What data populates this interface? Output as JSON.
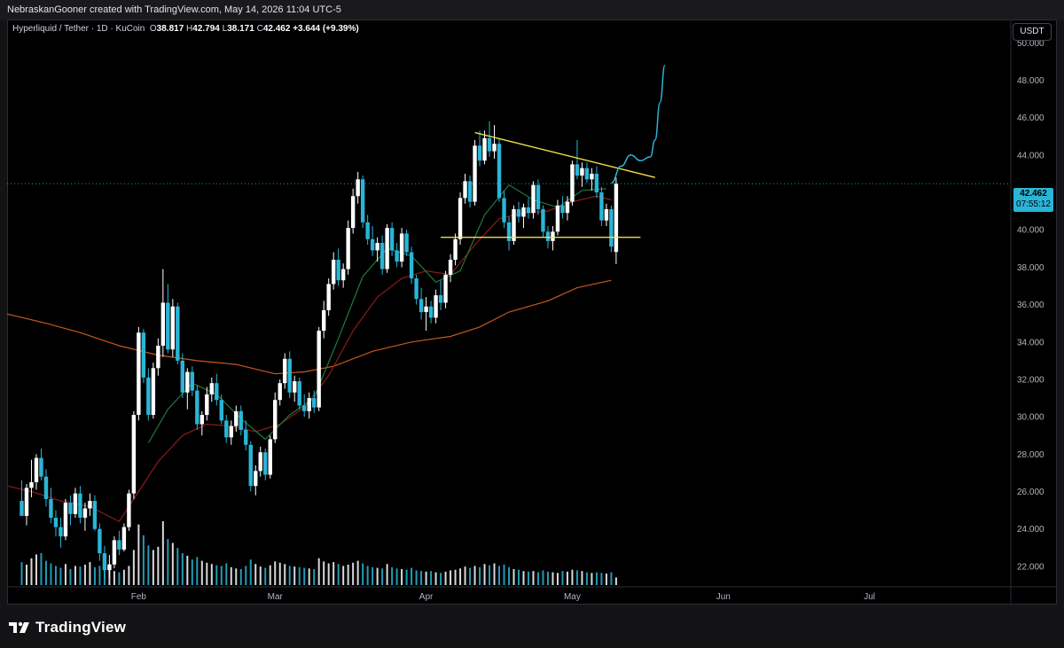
{
  "header": {
    "attribution": "NebraskanGooner created with TradingView.com, May 14, 2026 11:04 UTC-5"
  },
  "legend": {
    "symbol": "Hyperliquid / Tether · 1D · KuCoin",
    "o_label": "O",
    "o_value": "38.817",
    "h_label": "H",
    "h_value": "42.794",
    "l_label": "L",
    "l_value": "38.171",
    "c_label": "C",
    "c_value": "42.462",
    "change": "+3.644 (+9.39%)"
  },
  "currency_button": "USDT",
  "price_tag": {
    "price": "42.462",
    "countdown": "07:55:12"
  },
  "brand": {
    "name": "TradingView"
  },
  "colors": {
    "up_candle": "#ffffff",
    "down_candle": "#2ab5d6",
    "ma_green": "#1e7a3a",
    "ma_red": "#8b1a1a",
    "ma_orange": "#c8581a",
    "trendline": "#f0e050",
    "projection": "#2ab5d6",
    "volume_up": "#ffffff",
    "volume_down": "#2ab5d6"
  },
  "chart_data": {
    "type": "candlestick",
    "interval": "1D",
    "y_axis": {
      "ticks": [
        "22.000",
        "24.000",
        "26.000",
        "28.000",
        "30.000",
        "32.000",
        "34.000",
        "36.000",
        "38.000",
        "40.000",
        "42.000",
        "44.000",
        "46.000",
        "48.000",
        "50.000"
      ],
      "range": [
        21.0,
        51.2
      ],
      "side": "right"
    },
    "x_axis": {
      "ticks": [
        {
          "label": "Feb",
          "day": 24
        },
        {
          "label": "Mar",
          "day": 52
        },
        {
          "label": "Apr",
          "day": 83
        },
        {
          "label": "May",
          "day": 113
        },
        {
          "label": "Jun",
          "day": 144
        },
        {
          "label": "Jul",
          "day": 174
        }
      ],
      "day_range": [
        -3,
        203
      ]
    },
    "current_price": 42.462,
    "candles": [
      {
        "o": 25.5,
        "h": 26.6,
        "l": 24.7,
        "c": 24.7
      },
      {
        "o": 24.7,
        "h": 26.4,
        "l": 24.2,
        "c": 26.2
      },
      {
        "o": 26.2,
        "h": 27.7,
        "l": 25.7,
        "c": 26.5
      },
      {
        "o": 26.5,
        "h": 28.0,
        "l": 26.1,
        "c": 27.8
      },
      {
        "o": 27.8,
        "h": 28.3,
        "l": 26.6,
        "c": 26.8
      },
      {
        "o": 26.8,
        "h": 27.2,
        "l": 25.2,
        "c": 25.6
      },
      {
        "o": 25.6,
        "h": 26.2,
        "l": 24.3,
        "c": 24.6
      },
      {
        "o": 24.6,
        "h": 25.0,
        "l": 23.6,
        "c": 24.1
      },
      {
        "o": 24.1,
        "h": 24.6,
        "l": 23.0,
        "c": 23.6
      },
      {
        "o": 23.6,
        "h": 25.6,
        "l": 23.4,
        "c": 25.4
      },
      {
        "o": 25.4,
        "h": 25.8,
        "l": 24.2,
        "c": 24.8
      },
      {
        "o": 24.8,
        "h": 26.2,
        "l": 24.6,
        "c": 25.9
      },
      {
        "o": 25.9,
        "h": 26.3,
        "l": 24.3,
        "c": 24.6
      },
      {
        "o": 24.6,
        "h": 25.4,
        "l": 23.9,
        "c": 25.1
      },
      {
        "o": 25.1,
        "h": 25.9,
        "l": 24.7,
        "c": 25.5
      },
      {
        "o": 25.5,
        "h": 25.8,
        "l": 23.9,
        "c": 24.0
      },
      {
        "o": 24.0,
        "h": 24.3,
        "l": 22.3,
        "c": 22.7
      },
      {
        "o": 22.7,
        "h": 23.1,
        "l": 21.3,
        "c": 21.8
      },
      {
        "o": 21.8,
        "h": 22.6,
        "l": 21.4,
        "c": 22.1
      },
      {
        "o": 22.1,
        "h": 23.6,
        "l": 21.9,
        "c": 23.4
      },
      {
        "o": 23.4,
        "h": 23.9,
        "l": 22.6,
        "c": 22.9
      },
      {
        "o": 22.9,
        "h": 24.3,
        "l": 22.8,
        "c": 24.1
      },
      {
        "o": 24.1,
        "h": 26.1,
        "l": 23.9,
        "c": 25.9
      },
      {
        "o": 25.9,
        "h": 30.3,
        "l": 25.6,
        "c": 30.1
      },
      {
        "o": 30.1,
        "h": 34.8,
        "l": 29.8,
        "c": 34.5
      },
      {
        "o": 34.5,
        "h": 34.7,
        "l": 31.8,
        "c": 32.1
      },
      {
        "o": 32.1,
        "h": 32.6,
        "l": 29.8,
        "c": 30.1
      },
      {
        "o": 30.1,
        "h": 32.9,
        "l": 29.9,
        "c": 32.6
      },
      {
        "o": 32.6,
        "h": 34.2,
        "l": 32.2,
        "c": 33.8
      },
      {
        "o": 33.8,
        "h": 37.9,
        "l": 33.2,
        "c": 36.1
      },
      {
        "o": 36.1,
        "h": 37.1,
        "l": 33.4,
        "c": 33.6
      },
      {
        "o": 33.6,
        "h": 36.3,
        "l": 33.2,
        "c": 35.9
      },
      {
        "o": 35.9,
        "h": 36.1,
        "l": 32.8,
        "c": 33.0
      },
      {
        "o": 33.0,
        "h": 33.4,
        "l": 31.0,
        "c": 31.3
      },
      {
        "o": 31.3,
        "h": 32.6,
        "l": 30.4,
        "c": 32.4
      },
      {
        "o": 32.4,
        "h": 32.7,
        "l": 31.1,
        "c": 31.4
      },
      {
        "o": 31.4,
        "h": 31.7,
        "l": 29.3,
        "c": 29.6
      },
      {
        "o": 29.6,
        "h": 30.3,
        "l": 29.0,
        "c": 30.1
      },
      {
        "o": 30.1,
        "h": 31.6,
        "l": 29.8,
        "c": 31.2
      },
      {
        "o": 31.2,
        "h": 32.1,
        "l": 30.8,
        "c": 31.8
      },
      {
        "o": 31.8,
        "h": 32.3,
        "l": 30.6,
        "c": 30.9
      },
      {
        "o": 30.9,
        "h": 31.2,
        "l": 29.6,
        "c": 29.8
      },
      {
        "o": 29.8,
        "h": 30.1,
        "l": 28.6,
        "c": 28.9
      },
      {
        "o": 28.9,
        "h": 29.8,
        "l": 28.5,
        "c": 29.5
      },
      {
        "o": 29.5,
        "h": 30.6,
        "l": 29.2,
        "c": 30.3
      },
      {
        "o": 30.3,
        "h": 30.6,
        "l": 29.0,
        "c": 29.3
      },
      {
        "o": 29.3,
        "h": 29.8,
        "l": 28.2,
        "c": 28.5
      },
      {
        "o": 28.5,
        "h": 28.7,
        "l": 26.0,
        "c": 26.3
      },
      {
        "o": 26.3,
        "h": 27.4,
        "l": 25.8,
        "c": 27.1
      },
      {
        "o": 27.1,
        "h": 28.4,
        "l": 26.8,
        "c": 28.1
      },
      {
        "o": 28.1,
        "h": 28.3,
        "l": 26.6,
        "c": 26.9
      },
      {
        "o": 26.9,
        "h": 29.0,
        "l": 26.7,
        "c": 28.8
      },
      {
        "o": 28.8,
        "h": 31.3,
        "l": 28.6,
        "c": 30.9
      },
      {
        "o": 30.9,
        "h": 32.0,
        "l": 30.6,
        "c": 31.8
      },
      {
        "o": 31.8,
        "h": 33.4,
        "l": 31.5,
        "c": 33.1
      },
      {
        "o": 33.1,
        "h": 33.5,
        "l": 31.0,
        "c": 31.3
      },
      {
        "o": 31.3,
        "h": 32.2,
        "l": 30.8,
        "c": 31.9
      },
      {
        "o": 31.9,
        "h": 32.1,
        "l": 30.4,
        "c": 30.6
      },
      {
        "o": 30.6,
        "h": 31.2,
        "l": 30.0,
        "c": 30.3
      },
      {
        "o": 30.3,
        "h": 31.3,
        "l": 29.9,
        "c": 31.0
      },
      {
        "o": 31.0,
        "h": 31.4,
        "l": 30.2,
        "c": 30.5
      },
      {
        "o": 30.5,
        "h": 34.8,
        "l": 30.3,
        "c": 34.6
      },
      {
        "o": 34.6,
        "h": 36.2,
        "l": 34.2,
        "c": 35.7
      },
      {
        "o": 35.7,
        "h": 37.4,
        "l": 35.4,
        "c": 37.1
      },
      {
        "o": 37.1,
        "h": 38.8,
        "l": 36.8,
        "c": 38.4
      },
      {
        "o": 38.4,
        "h": 39.0,
        "l": 37.0,
        "c": 37.3
      },
      {
        "o": 37.3,
        "h": 38.2,
        "l": 36.9,
        "c": 37.9
      },
      {
        "o": 37.9,
        "h": 40.5,
        "l": 37.6,
        "c": 40.1
      },
      {
        "o": 40.1,
        "h": 42.2,
        "l": 39.8,
        "c": 41.8
      },
      {
        "o": 41.8,
        "h": 43.1,
        "l": 41.4,
        "c": 42.7
      },
      {
        "o": 42.7,
        "h": 42.9,
        "l": 40.1,
        "c": 40.4
      },
      {
        "o": 40.4,
        "h": 40.8,
        "l": 39.2,
        "c": 39.5
      },
      {
        "o": 39.5,
        "h": 40.2,
        "l": 38.6,
        "c": 38.9
      },
      {
        "o": 38.9,
        "h": 39.6,
        "l": 38.3,
        "c": 39.3
      },
      {
        "o": 39.3,
        "h": 39.7,
        "l": 37.6,
        "c": 37.9
      },
      {
        "o": 37.9,
        "h": 40.3,
        "l": 37.7,
        "c": 40.1
      },
      {
        "o": 40.1,
        "h": 40.4,
        "l": 38.6,
        "c": 38.9
      },
      {
        "o": 38.9,
        "h": 39.3,
        "l": 38.0,
        "c": 38.3
      },
      {
        "o": 38.3,
        "h": 40.1,
        "l": 38.0,
        "c": 39.8
      },
      {
        "o": 39.8,
        "h": 40.0,
        "l": 38.6,
        "c": 38.8
      },
      {
        "o": 38.8,
        "h": 39.1,
        "l": 37.1,
        "c": 37.4
      },
      {
        "o": 37.4,
        "h": 37.6,
        "l": 36.0,
        "c": 36.3
      },
      {
        "o": 36.3,
        "h": 36.9,
        "l": 35.2,
        "c": 35.6
      },
      {
        "o": 35.6,
        "h": 36.4,
        "l": 34.6,
        "c": 35.9
      },
      {
        "o": 35.9,
        "h": 36.2,
        "l": 35.0,
        "c": 35.3
      },
      {
        "o": 35.3,
        "h": 36.8,
        "l": 35.0,
        "c": 36.5
      },
      {
        "o": 36.5,
        "h": 37.3,
        "l": 35.7,
        "c": 36.1
      },
      {
        "o": 36.1,
        "h": 37.8,
        "l": 35.8,
        "c": 37.6
      },
      {
        "o": 37.6,
        "h": 38.7,
        "l": 37.2,
        "c": 38.4
      },
      {
        "o": 38.4,
        "h": 39.8,
        "l": 38.1,
        "c": 39.5
      },
      {
        "o": 39.5,
        "h": 42.0,
        "l": 39.2,
        "c": 41.7
      },
      {
        "o": 41.7,
        "h": 43.0,
        "l": 41.4,
        "c": 42.6
      },
      {
        "o": 42.6,
        "h": 42.9,
        "l": 41.2,
        "c": 41.5
      },
      {
        "o": 41.5,
        "h": 44.8,
        "l": 41.3,
        "c": 44.5
      },
      {
        "o": 44.5,
        "h": 45.3,
        "l": 43.4,
        "c": 43.7
      },
      {
        "o": 43.7,
        "h": 45.3,
        "l": 43.5,
        "c": 44.9
      },
      {
        "o": 44.9,
        "h": 45.8,
        "l": 43.9,
        "c": 44.2
      },
      {
        "o": 44.2,
        "h": 45.6,
        "l": 43.8,
        "c": 44.6
      },
      {
        "o": 44.6,
        "h": 44.9,
        "l": 41.5,
        "c": 41.7
      },
      {
        "o": 41.7,
        "h": 42.1,
        "l": 40.1,
        "c": 40.4
      },
      {
        "o": 40.4,
        "h": 40.7,
        "l": 38.9,
        "c": 39.4
      },
      {
        "o": 39.4,
        "h": 41.3,
        "l": 39.2,
        "c": 41.1
      },
      {
        "o": 41.1,
        "h": 41.5,
        "l": 40.4,
        "c": 40.7
      },
      {
        "o": 40.7,
        "h": 41.4,
        "l": 40.1,
        "c": 41.2
      },
      {
        "o": 41.2,
        "h": 41.7,
        "l": 40.6,
        "c": 40.9
      },
      {
        "o": 40.9,
        "h": 42.6,
        "l": 40.6,
        "c": 42.4
      },
      {
        "o": 42.4,
        "h": 42.7,
        "l": 40.8,
        "c": 41.1
      },
      {
        "o": 41.1,
        "h": 41.3,
        "l": 39.6,
        "c": 39.9
      },
      {
        "o": 39.9,
        "h": 40.2,
        "l": 39.0,
        "c": 39.4
      },
      {
        "o": 39.4,
        "h": 40.2,
        "l": 38.9,
        "c": 39.9
      },
      {
        "o": 39.9,
        "h": 41.6,
        "l": 39.7,
        "c": 41.3
      },
      {
        "o": 41.3,
        "h": 41.8,
        "l": 40.6,
        "c": 40.9
      },
      {
        "o": 40.9,
        "h": 41.8,
        "l": 40.5,
        "c": 41.5
      },
      {
        "o": 41.5,
        "h": 43.7,
        "l": 41.3,
        "c": 43.5
      },
      {
        "o": 43.5,
        "h": 44.8,
        "l": 42.7,
        "c": 42.9
      },
      {
        "o": 42.9,
        "h": 43.6,
        "l": 42.3,
        "c": 43.3
      },
      {
        "o": 43.3,
        "h": 43.6,
        "l": 42.5,
        "c": 42.7
      },
      {
        "o": 42.7,
        "h": 43.3,
        "l": 42.1,
        "c": 43.0
      },
      {
        "o": 43.0,
        "h": 43.4,
        "l": 41.7,
        "c": 42.0
      },
      {
        "o": 42.0,
        "h": 42.3,
        "l": 40.2,
        "c": 40.5
      },
      {
        "o": 40.5,
        "h": 41.4,
        "l": 40.2,
        "c": 41.1
      },
      {
        "o": 41.1,
        "h": 41.3,
        "l": 38.8,
        "c": 39.1
      },
      {
        "o": 38.817,
        "h": 42.794,
        "l": 38.171,
        "c": 42.462
      }
    ],
    "volume_max_height_fraction": 1.0,
    "volume": [
      0.36,
      0.32,
      0.42,
      0.48,
      0.5,
      0.38,
      0.34,
      0.3,
      0.27,
      0.33,
      0.25,
      0.3,
      0.29,
      0.32,
      0.36,
      0.28,
      0.3,
      0.4,
      0.33,
      0.22,
      0.2,
      0.24,
      0.3,
      0.55,
      0.95,
      0.78,
      0.62,
      0.55,
      0.6,
      1.0,
      0.72,
      0.66,
      0.58,
      0.5,
      0.46,
      0.4,
      0.44,
      0.38,
      0.35,
      0.33,
      0.31,
      0.3,
      0.34,
      0.28,
      0.26,
      0.25,
      0.3,
      0.4,
      0.33,
      0.29,
      0.27,
      0.31,
      0.37,
      0.35,
      0.33,
      0.3,
      0.29,
      0.28,
      0.27,
      0.26,
      0.25,
      0.42,
      0.37,
      0.34,
      0.36,
      0.33,
      0.3,
      0.32,
      0.35,
      0.38,
      0.34,
      0.3,
      0.28,
      0.27,
      0.26,
      0.33,
      0.28,
      0.26,
      0.25,
      0.24,
      0.27,
      0.23,
      0.22,
      0.21,
      0.22,
      0.2,
      0.19,
      0.21,
      0.23,
      0.24,
      0.26,
      0.29,
      0.27,
      0.3,
      0.28,
      0.33,
      0.31,
      0.34,
      0.3,
      0.32,
      0.28,
      0.25,
      0.24,
      0.22,
      0.21,
      0.22,
      0.2,
      0.23,
      0.21,
      0.2,
      0.19,
      0.22,
      0.21,
      0.24,
      0.23,
      0.22,
      0.2,
      0.19,
      0.2,
      0.19,
      0.18,
      0.2,
      0.12
    ],
    "ma_green": [
      {
        "d": 26,
        "v": 28.6
      },
      {
        "d": 30,
        "v": 30.4
      },
      {
        "d": 35,
        "v": 31.8
      },
      {
        "d": 40,
        "v": 31.2
      },
      {
        "d": 45,
        "v": 29.9
      },
      {
        "d": 50,
        "v": 28.8
      },
      {
        "d": 55,
        "v": 30.1
      },
      {
        "d": 60,
        "v": 31.0
      },
      {
        "d": 65,
        "v": 34.2
      },
      {
        "d": 70,
        "v": 37.5
      },
      {
        "d": 75,
        "v": 39.0
      },
      {
        "d": 80,
        "v": 38.6
      },
      {
        "d": 85,
        "v": 37.2
      },
      {
        "d": 90,
        "v": 37.8
      },
      {
        "d": 95,
        "v": 40.8
      },
      {
        "d": 100,
        "v": 42.4
      },
      {
        "d": 105,
        "v": 41.6
      },
      {
        "d": 110,
        "v": 41.2
      },
      {
        "d": 115,
        "v": 42.1
      },
      {
        "d": 120,
        "v": 42.2
      }
    ],
    "ma_red": [
      {
        "d": -3,
        "v": 26.3
      },
      {
        "d": 2,
        "v": 26.0
      },
      {
        "d": 8,
        "v": 25.5
      },
      {
        "d": 14,
        "v": 25.2
      },
      {
        "d": 20,
        "v": 24.4
      },
      {
        "d": 24,
        "v": 26.0
      },
      {
        "d": 28,
        "v": 27.6
      },
      {
        "d": 33,
        "v": 29.0
      },
      {
        "d": 38,
        "v": 29.6
      },
      {
        "d": 43,
        "v": 29.5
      },
      {
        "d": 48,
        "v": 29.2
      },
      {
        "d": 53,
        "v": 29.6
      },
      {
        "d": 58,
        "v": 30.5
      },
      {
        "d": 63,
        "v": 32.2
      },
      {
        "d": 68,
        "v": 34.6
      },
      {
        "d": 73,
        "v": 36.4
      },
      {
        "d": 78,
        "v": 37.4
      },
      {
        "d": 83,
        "v": 37.8
      },
      {
        "d": 88,
        "v": 37.6
      },
      {
        "d": 93,
        "v": 39.2
      },
      {
        "d": 98,
        "v": 40.6
      },
      {
        "d": 103,
        "v": 40.9
      },
      {
        "d": 108,
        "v": 41.0
      },
      {
        "d": 113,
        "v": 41.5
      },
      {
        "d": 118,
        "v": 41.8
      },
      {
        "d": 121,
        "v": 41.6
      }
    ],
    "ma_orange": [
      {
        "d": -3,
        "v": 35.5
      },
      {
        "d": 5,
        "v": 35.0
      },
      {
        "d": 12,
        "v": 34.5
      },
      {
        "d": 20,
        "v": 33.8
      },
      {
        "d": 28,
        "v": 33.3
      },
      {
        "d": 36,
        "v": 33.0
      },
      {
        "d": 44,
        "v": 32.8
      },
      {
        "d": 52,
        "v": 32.3
      },
      {
        "d": 58,
        "v": 32.4
      },
      {
        "d": 64,
        "v": 32.7
      },
      {
        "d": 72,
        "v": 33.5
      },
      {
        "d": 80,
        "v": 34.0
      },
      {
        "d": 88,
        "v": 34.3
      },
      {
        "d": 94,
        "v": 34.8
      },
      {
        "d": 100,
        "v": 35.6
      },
      {
        "d": 108,
        "v": 36.2
      },
      {
        "d": 114,
        "v": 36.9
      },
      {
        "d": 121,
        "v": 37.3
      }
    ],
    "trendline_upper": {
      "from": {
        "d": 93,
        "v": 45.2
      },
      "to": {
        "d": 130,
        "v": 42.8
      }
    },
    "trendline_support": {
      "from": {
        "d": 86,
        "v": 39.6
      },
      "to": {
        "d": 127,
        "v": 39.6
      }
    },
    "projection_path": [
      {
        "d": 121,
        "v": 42.5
      },
      {
        "d": 123,
        "v": 43.4
      },
      {
        "d": 125,
        "v": 44.0
      },
      {
        "d": 127,
        "v": 43.7
      },
      {
        "d": 129,
        "v": 43.9
      },
      {
        "d": 130,
        "v": 44.8
      },
      {
        "d": 131,
        "v": 46.8
      },
      {
        "d": 132,
        "v": 48.8
      }
    ]
  }
}
